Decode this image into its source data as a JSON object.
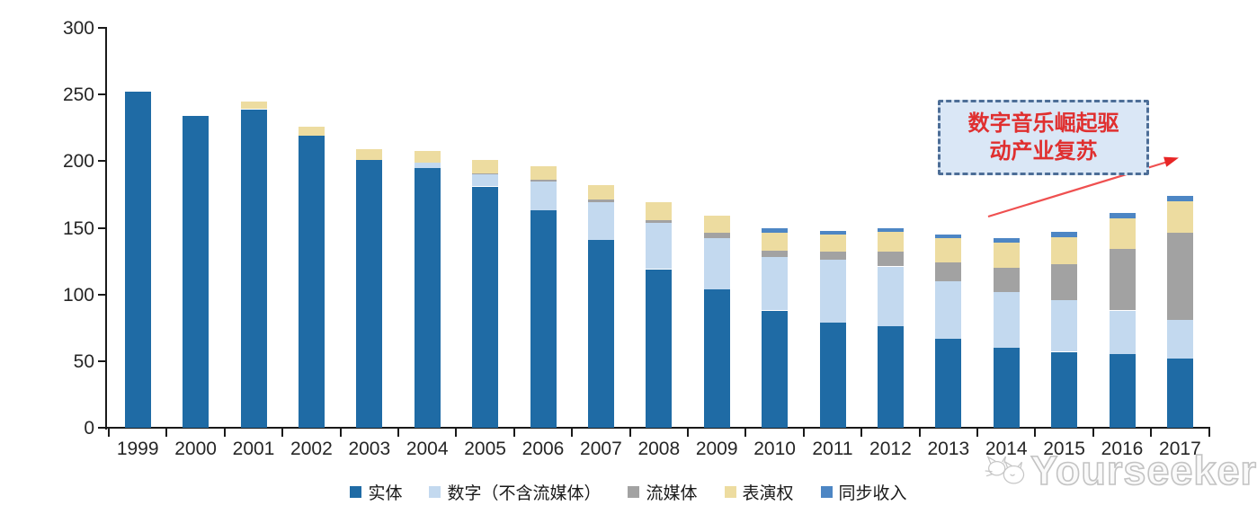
{
  "annotation": {
    "line1": "数字音乐崛起驱",
    "line2": "动产业复苏",
    "text_color": "#e02f2f",
    "box_fill": "#dae7f6",
    "box_border": "#4d6e97",
    "arrow_color": "#ef4a42"
  },
  "watermark": {
    "text": "Yourseeker",
    "icon": "cat-logo-icon",
    "color": "#c3c3c3"
  },
  "chart_data": {
    "type": "bar",
    "subtype": "stacked-vertical",
    "title": "",
    "xlabel": "",
    "ylabel": "",
    "ylim": [
      0,
      300
    ],
    "y_ticks": [
      0,
      50,
      100,
      150,
      200,
      250,
      300
    ],
    "grid": false,
    "legend_position": "bottom",
    "categories": [
      "1999",
      "2000",
      "2001",
      "2002",
      "2003",
      "2004",
      "2005",
      "2006",
      "2007",
      "2008",
      "2009",
      "2010",
      "2011",
      "2012",
      "2013",
      "2014",
      "2015",
      "2016",
      "2017"
    ],
    "series": [
      {
        "name": "实体",
        "color": "#1f6ba5",
        "values": [
          252,
          234,
          239,
          219,
          201,
          195,
          181,
          163,
          141,
          119,
          104,
          88,
          79,
          76,
          67,
          60,
          57,
          55,
          52
        ]
      },
      {
        "name": "数字（不含流媒体）",
        "color": "#c3d9ef",
        "values": [
          0,
          0,
          0,
          0,
          0,
          4,
          9,
          22,
          28,
          35,
          38,
          40,
          47,
          45,
          43,
          42,
          39,
          33,
          29
        ]
      },
      {
        "name": "流媒体",
        "color": "#a2a2a2",
        "values": [
          0,
          0,
          0,
          0,
          0,
          0,
          1,
          1,
          2,
          2,
          4,
          5,
          6,
          11,
          14,
          18,
          27,
          46,
          65
        ]
      },
      {
        "name": "表演权",
        "color": "#eddca0",
        "values": [
          0,
          0,
          6,
          7,
          8,
          9,
          10,
          10,
          11,
          13,
          13,
          13,
          13,
          15,
          18,
          19,
          20,
          23,
          24
        ]
      },
      {
        "name": "同步收入",
        "color": "#4d86c4",
        "values": [
          0,
          0,
          0,
          0,
          0,
          0,
          0,
          0,
          0,
          0,
          0,
          4,
          3,
          3,
          3,
          3,
          4,
          4,
          4
        ]
      }
    ],
    "totals": [
      252,
      234,
      245,
      226,
      209,
      208,
      201,
      196,
      182,
      169,
      159,
      150,
      148,
      150,
      145,
      142,
      147,
      161,
      174
    ]
  }
}
